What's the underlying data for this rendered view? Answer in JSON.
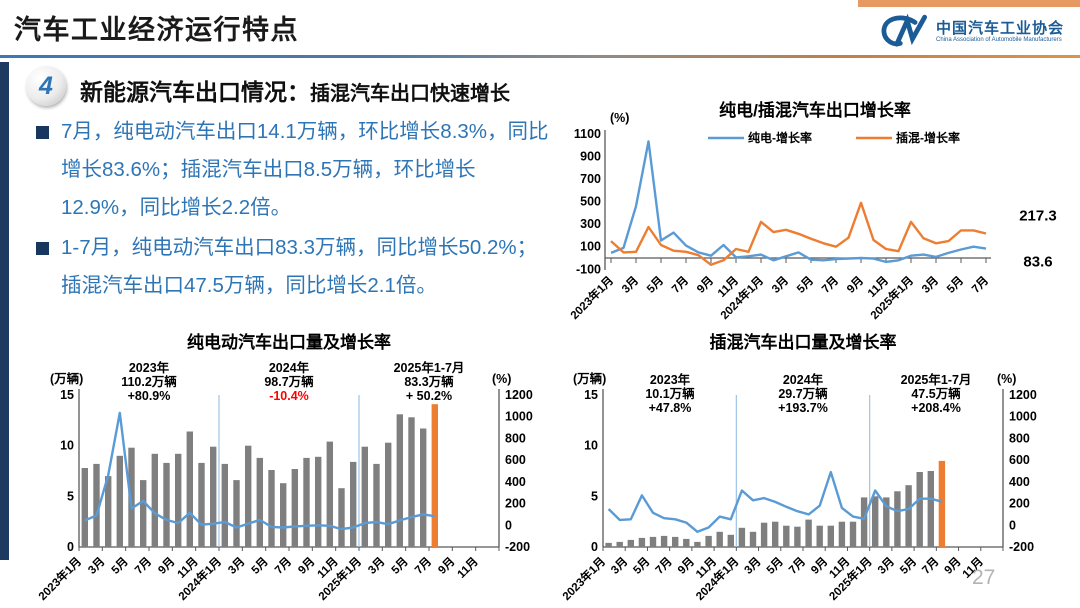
{
  "page": {
    "number": "27"
  },
  "header": {
    "title": "汽车工业经济运行特点",
    "logo": {
      "name": "中国汽车工业协会",
      "subtitle": "China Association of Automobile Manufacturers"
    }
  },
  "section": {
    "badge": "4",
    "title_strong": "新能源汽车出口情况：",
    "title_rest": "插混汽车出口快速增长"
  },
  "bullets": [
    {
      "text": "7月，纯电动汽车出口14.1万辆，环比增长8.3%，同比增长83.6%；插混汽车出口8.5万辆，环比增长12.9%，同比增长2.2倍。"
    },
    {
      "text": "1-7月，纯电动汽车出口83.3万辆，同比增长50.2%；插混汽车出口47.5万辆，同比增长2.1倍。"
    }
  ],
  "colors": {
    "accent_blue": "#2E75B6",
    "accent_orange": "#ED7D31",
    "line_blue": "#5B9BD5",
    "bar_gray": "#7F7F7F",
    "separator_blue": "#9DC3E6",
    "negative_red": "#FF0000"
  },
  "chart_data": [
    {
      "type": "line",
      "title": "纯电/插混汽车出口增长率",
      "unit": "(%)",
      "ylim": [
        -100,
        1100
      ],
      "yticks": [
        1100,
        900,
        700,
        500,
        300,
        100,
        -100
      ],
      "x_tick_labels": [
        "2023年1月",
        "3月",
        "5月",
        "7月",
        "9月",
        "11月",
        "2024年1月",
        "3月",
        "5月",
        "7月",
        "9月",
        "11月",
        "2025年1月",
        "3月",
        "5月",
        "7月"
      ],
      "legend_position": "top",
      "series": [
        {
          "name": "纯电-增长率",
          "color": "#5B9BD5",
          "end_label": "83.6",
          "values": [
            45,
            90,
            460,
            1035,
            155,
            225,
            110,
            50,
            20,
            115,
            5,
            15,
            30,
            -20,
            15,
            50,
            -15,
            -20,
            -10,
            -5,
            0,
            -5,
            -35,
            -20,
            20,
            30,
            10,
            45,
            75,
            100,
            83.6
          ]
        },
        {
          "name": "插混-增长率",
          "color": "#ED7D31",
          "end_label": "217.3",
          "values": [
            150,
            50,
            55,
            275,
            115,
            65,
            55,
            25,
            -60,
            -20,
            80,
            55,
            320,
            230,
            250,
            215,
            170,
            130,
            100,
            180,
            490,
            160,
            80,
            60,
            320,
            175,
            130,
            150,
            245,
            245,
            217.3
          ]
        }
      ]
    },
    {
      "type": "bar",
      "title": "纯电动汽车出口量及增长率",
      "left_unit": "(万辆)",
      "right_unit": "(%)",
      "left_ylim": [
        0,
        15
      ],
      "left_yticks": [
        15,
        10,
        5,
        0
      ],
      "right_ylim": [
        -200,
        1200
      ],
      "right_yticks": [
        1200,
        1000,
        800,
        600,
        400,
        200,
        0,
        -200
      ],
      "x_tick_labels": [
        "2023年1月",
        "3月",
        "5月",
        "7月",
        "9月",
        "11月",
        "2024年1月",
        "3月",
        "5月",
        "7月",
        "9月",
        "11月",
        "2025年1月",
        "3月",
        "5月",
        "7月",
        "9月",
        "11月"
      ],
      "bar_unit": "万辆",
      "bar_color": "#7F7F7F",
      "bar_highlight": "#ED7D31",
      "highlight_last": true,
      "bars": [
        7.8,
        8.2,
        7.0,
        9.0,
        9.8,
        6.6,
        9.2,
        8.3,
        9.2,
        11.4,
        8.3,
        9.9,
        8.2,
        6.6,
        10.0,
        8.8,
        7.6,
        6.3,
        7.7,
        8.8,
        8.9,
        10.4,
        5.8,
        8.4,
        9.9,
        8.2,
        10.3,
        13.1,
        12.8,
        11.7,
        14.1
      ],
      "line": {
        "name": "纯电-增长率(%)",
        "color": "#5B9BD5",
        "values": [
          45,
          90,
          460,
          1035,
          155,
          225,
          110,
          50,
          20,
          115,
          5,
          15,
          30,
          -20,
          15,
          50,
          -15,
          -20,
          -10,
          -5,
          0,
          -5,
          -35,
          -20,
          20,
          30,
          10,
          45,
          75,
          100,
          83.6
        ]
      },
      "separators_at_month": [
        12,
        24
      ],
      "annotations": [
        {
          "lines": [
            "2023年",
            "110.2万辆",
            "+80.9%"
          ]
        },
        {
          "lines": [
            "2024年",
            "98.7万辆",
            "-10.4%"
          ],
          "line_colors": [
            null,
            null,
            "#FF0000"
          ]
        },
        {
          "lines": [
            "2025年1-7月",
            "83.3万辆",
            "+ 50.2%"
          ]
        }
      ]
    },
    {
      "type": "bar",
      "title": "插混汽车出口量及增长率",
      "left_unit": "(万辆)",
      "right_unit": "(%)",
      "left_ylim": [
        0,
        15
      ],
      "left_yticks": [
        15,
        10,
        5,
        0
      ],
      "right_ylim": [
        -200,
        1200
      ],
      "right_yticks": [
        1200,
        1000,
        800,
        600,
        400,
        200,
        0,
        -200
      ],
      "x_tick_labels": [
        "2023年1月",
        "3月",
        "5月",
        "7月",
        "9月",
        "11月",
        "2024年1月",
        "3月",
        "5月",
        "7月",
        "9月",
        "11月",
        "2025年1月",
        "3月",
        "5月",
        "7月",
        "9月",
        "11月"
      ],
      "bar_unit": "万辆",
      "bar_color": "#7F7F7F",
      "bar_highlight": "#ED7D31",
      "highlight_last": true,
      "bars": [
        0.4,
        0.5,
        0.7,
        0.9,
        1.0,
        1.1,
        1.0,
        0.8,
        0.5,
        1.1,
        1.5,
        1.2,
        1.9,
        1.5,
        2.4,
        2.5,
        2.1,
        2.0,
        2.7,
        2.1,
        2.1,
        2.5,
        2.5,
        4.9,
        5.0,
        4.9,
        5.5,
        6.1,
        7.4,
        7.5,
        8.5
      ],
      "line": {
        "name": "插混-增长率(%)",
        "color": "#5B9BD5",
        "values": [
          150,
          50,
          55,
          275,
          115,
          65,
          55,
          25,
          -60,
          -20,
          80,
          55,
          320,
          230,
          250,
          215,
          170,
          130,
          100,
          180,
          490,
          160,
          80,
          60,
          320,
          175,
          130,
          150,
          245,
          245,
          217.3
        ]
      },
      "separators_at_month": [
        12,
        24
      ],
      "annotations": [
        {
          "lines": [
            "2023年",
            "10.1万辆",
            "+47.8%"
          ]
        },
        {
          "lines": [
            "2024年",
            "29.7万辆",
            "+193.7%"
          ]
        },
        {
          "lines": [
            "2025年1-7月",
            "47.5万辆",
            "+208.4%"
          ]
        }
      ]
    }
  ]
}
